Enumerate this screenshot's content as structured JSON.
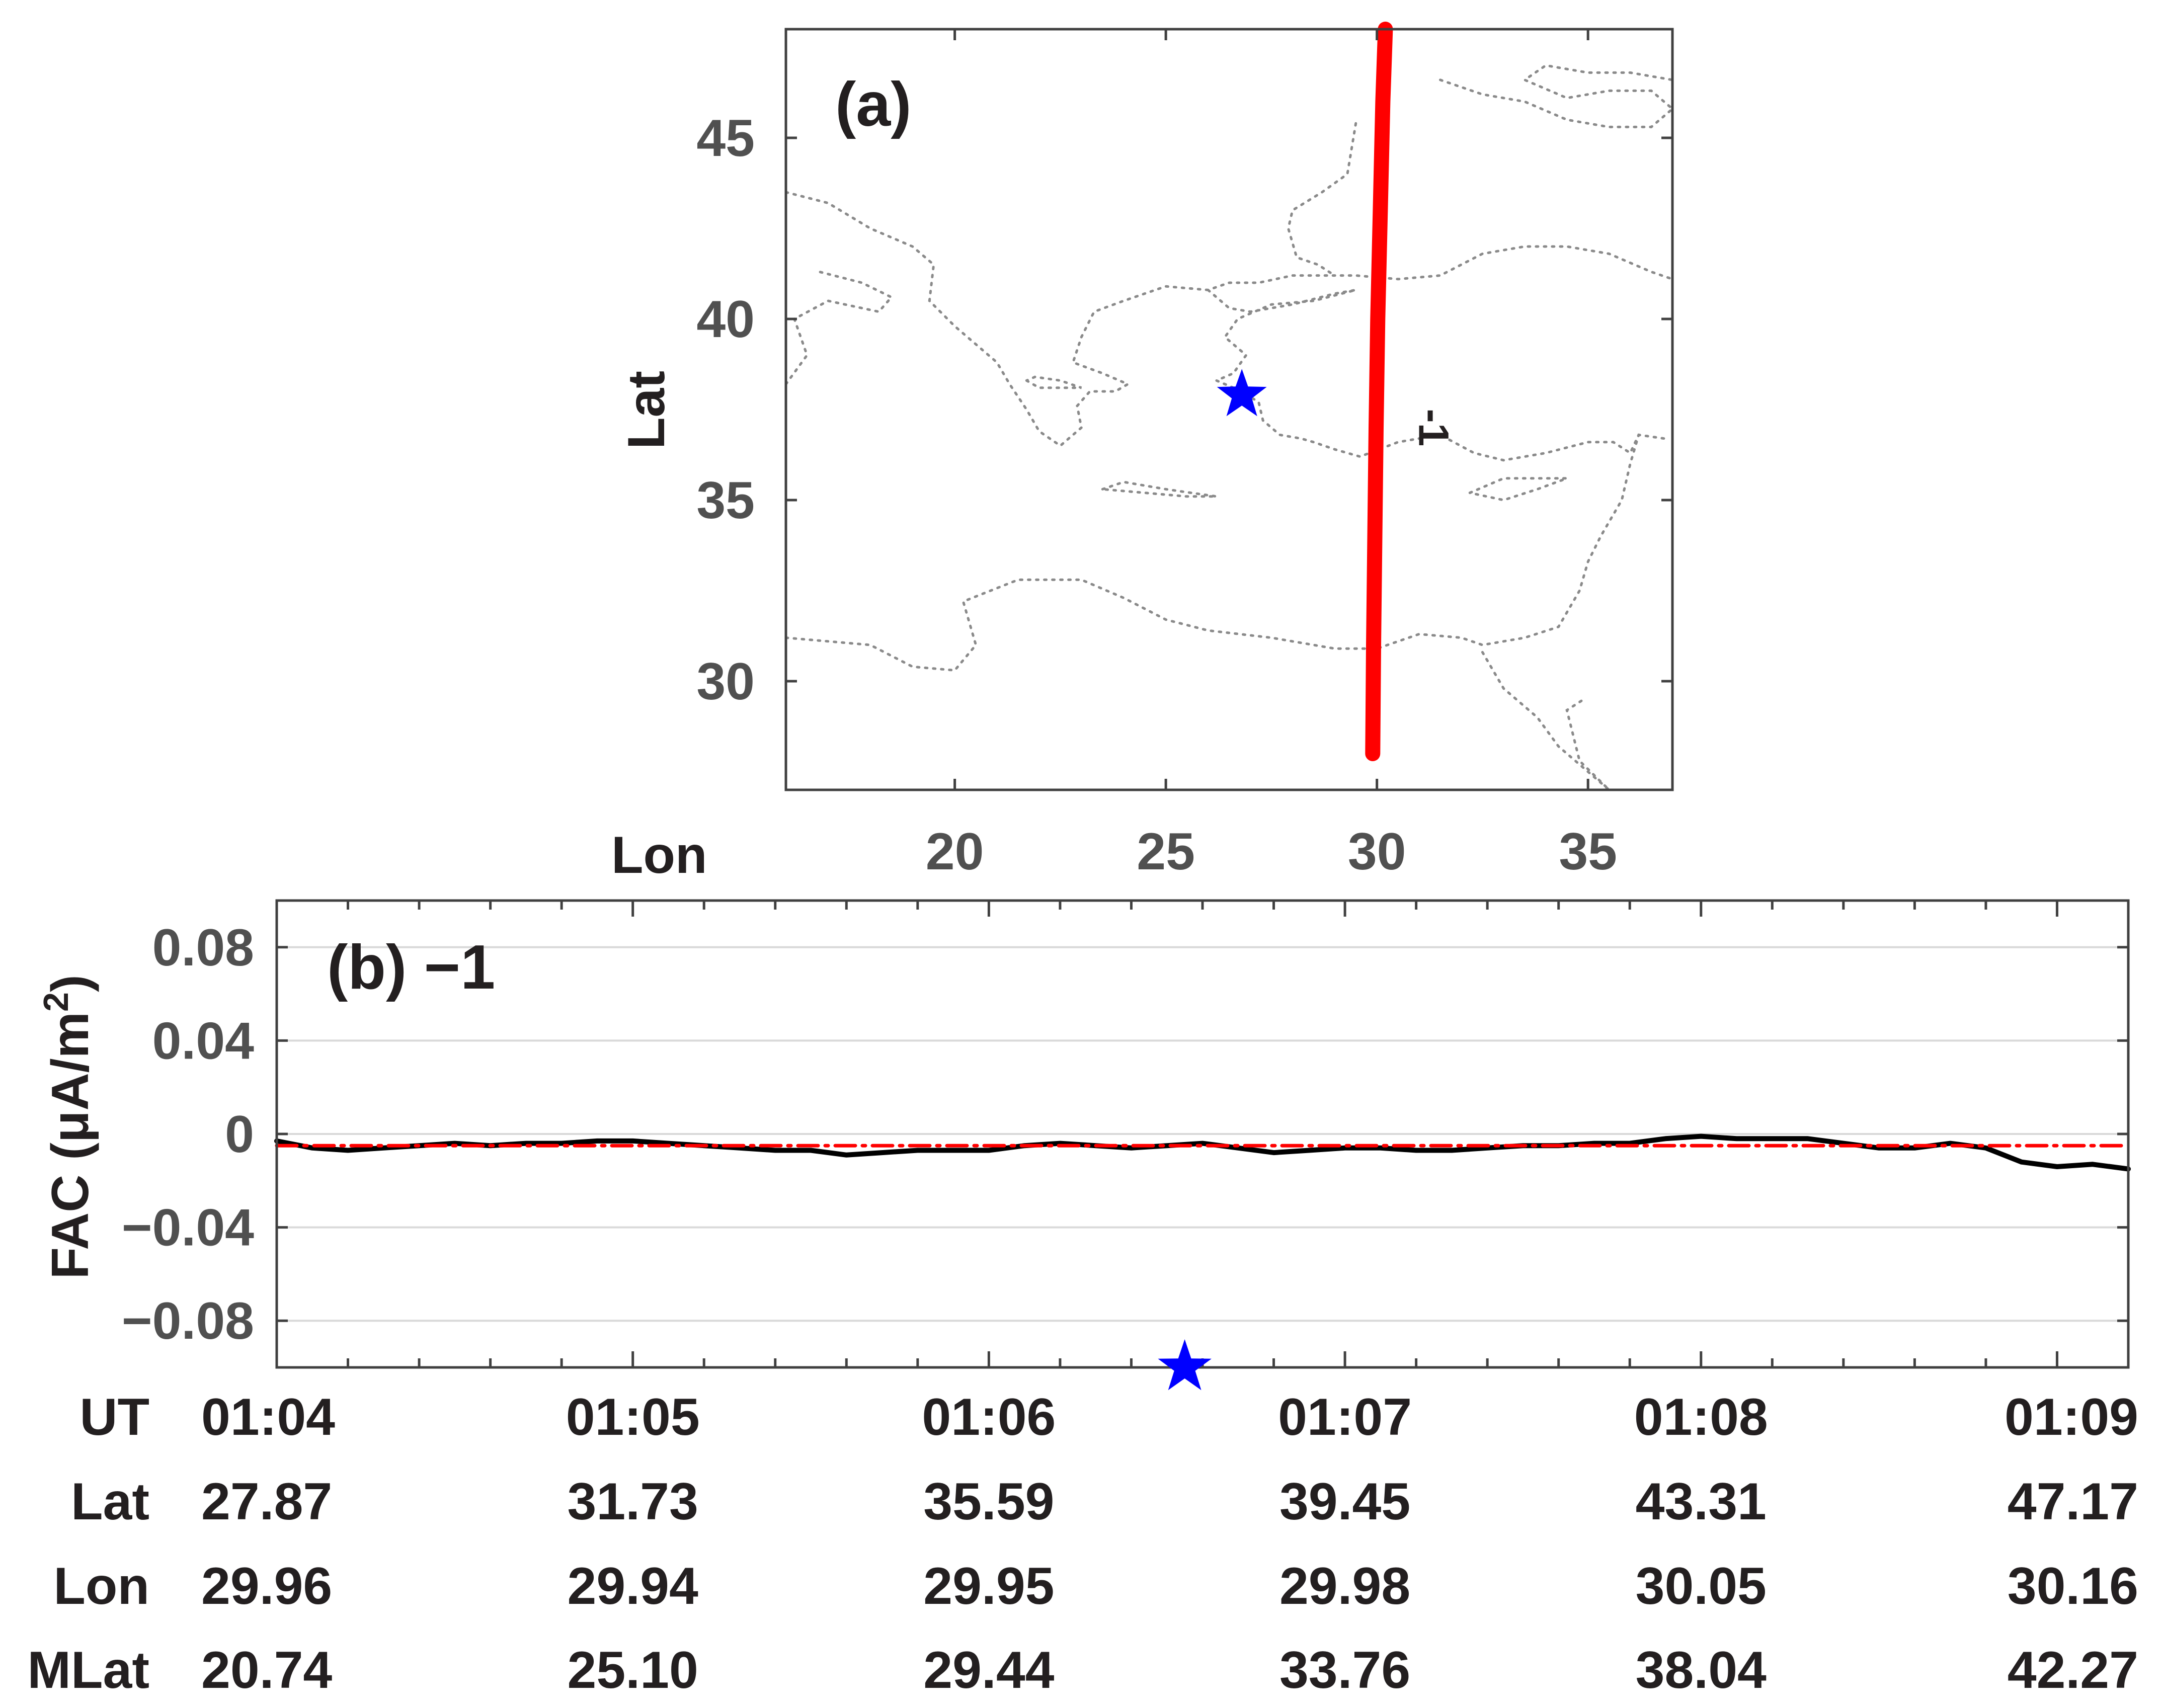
{
  "chart_data": [
    {
      "type": "line",
      "panel_label": "(a)",
      "xlabel": "Lon",
      "ylabel": "Lat",
      "xlim": [
        16,
        37
      ],
      "ylim": [
        27,
        48
      ],
      "xticks": [
        "20",
        "25",
        "30",
        "35"
      ],
      "yticks": [
        "30",
        "35",
        "40",
        "45"
      ],
      "grid": false,
      "track": {
        "color": "#ff0000",
        "label": "-1",
        "label_at": [
          31,
          37
        ],
        "lon": [
          29.9,
          29.92,
          29.95,
          29.98,
          30.02,
          30.08,
          30.14,
          30.2
        ],
        "lat": [
          28,
          31,
          34,
          37,
          40,
          43,
          46,
          48
        ]
      },
      "epicenter": {
        "lon": 26.8,
        "lat": 37.9,
        "color": "#0000ff"
      },
      "coastlines": {
        "style": "dotted",
        "color": "#8a8a8a",
        "polylines": [
          [
            [
              16,
              31.2
            ],
            [
              18,
              31
            ],
            [
              19,
              30.4
            ],
            [
              20,
              30.3
            ],
            [
              20.5,
              31
            ],
            [
              20.2,
              32.2
            ],
            [
              21.5,
              32.8
            ],
            [
              23,
              32.8
            ],
            [
              24,
              32.3
            ],
            [
              25,
              31.7
            ],
            [
              26,
              31.4
            ],
            [
              27.5,
              31.2
            ],
            [
              29,
              30.9
            ],
            [
              30,
              30.9
            ],
            [
              31,
              31.3
            ],
            [
              32,
              31.2
            ],
            [
              32.5,
              31
            ],
            [
              33.5,
              31.2
            ],
            [
              34.3,
              31.5
            ],
            [
              34.8,
              32.5
            ],
            [
              35,
              33.3
            ],
            [
              35.3,
              34
            ],
            [
              35.8,
              35
            ],
            [
              36,
              36
            ],
            [
              36.2,
              36.8
            ]
          ],
          [
            [
              16,
              43.5
            ],
            [
              17,
              43.2
            ],
            [
              18,
              42.5
            ],
            [
              19,
              42
            ],
            [
              19.5,
              41.5
            ],
            [
              19.4,
              40.5
            ],
            [
              20,
              39.8
            ],
            [
              20.5,
              39.3
            ],
            [
              21,
              38.8
            ],
            [
              21.3,
              38.2
            ],
            [
              21.7,
              37.5
            ],
            [
              22,
              36.9
            ],
            [
              22.5,
              36.5
            ],
            [
              23,
              37
            ],
            [
              22.9,
              37.6
            ],
            [
              23.2,
              38
            ],
            [
              23.8,
              38
            ],
            [
              24.1,
              38.2
            ],
            [
              23.5,
              38.5
            ],
            [
              22.8,
              38.8
            ],
            [
              23,
              39.5
            ],
            [
              23.3,
              40.2
            ],
            [
              24,
              40.5
            ],
            [
              25,
              40.9
            ],
            [
              26,
              40.8
            ],
            [
              26.5,
              41
            ],
            [
              27.2,
              41
            ],
            [
              28,
              41.2
            ],
            [
              29,
              41.2
            ],
            [
              29.5,
              41.2
            ],
            [
              30.5,
              41.1
            ],
            [
              31.5,
              41.2
            ],
            [
              32.5,
              41.8
            ],
            [
              33.5,
              42
            ],
            [
              34.5,
              42
            ],
            [
              35.5,
              41.8
            ],
            [
              36.5,
              41.3
            ],
            [
              37,
              41.1
            ]
          ],
          [
            [
              16,
              38.2
            ],
            [
              16.5,
              39
            ],
            [
              16.2,
              40
            ],
            [
              17,
              40.5
            ],
            [
              18.2,
              40.2
            ],
            [
              18.5,
              40.6
            ],
            [
              17.8,
              41
            ],
            [
              16.8,
              41.3
            ]
          ],
          [
            [
              26,
              40.8
            ],
            [
              26.5,
              40.3
            ],
            [
              27,
              40.2
            ],
            [
              28,
              40.4
            ],
            [
              29,
              40.7
            ],
            [
              29.5,
              40.8
            ],
            [
              28.5,
              40.5
            ],
            [
              27.5,
              40.4
            ],
            [
              26.7,
              40
            ],
            [
              26.4,
              39.5
            ],
            [
              26.9,
              39
            ],
            [
              26.6,
              38.5
            ],
            [
              26.2,
              38.3
            ],
            [
              26.8,
              38
            ],
            [
              27.2,
              37.7
            ],
            [
              27.3,
              37.2
            ],
            [
              27.7,
              36.8
            ],
            [
              28.2,
              36.7
            ],
            [
              28.5,
              36.6
            ],
            [
              29,
              36.4
            ],
            [
              29.6,
              36.2
            ],
            [
              30.5,
              36.6
            ],
            [
              31.5,
              36.8
            ],
            [
              32.3,
              36.3
            ],
            [
              33,
              36.1
            ],
            [
              34,
              36.3
            ],
            [
              35,
              36.6
            ],
            [
              35.6,
              36.6
            ],
            [
              36,
              36.3
            ],
            [
              36.2,
              36.8
            ],
            [
              36.8,
              36.7
            ]
          ],
          [
            [
              21.7,
              38.3
            ],
            [
              22,
              38.1
            ],
            [
              23,
              38.1
            ],
            [
              22.5,
              38.3
            ],
            [
              21.9,
              38.4
            ],
            [
              21.7,
              38.3
            ]
          ],
          [
            [
              23.5,
              35.3
            ],
            [
              24,
              35.5
            ],
            [
              25,
              35.3
            ],
            [
              26.2,
              35.1
            ],
            [
              25.5,
              35.1
            ],
            [
              24.5,
              35.2
            ],
            [
              23.5,
              35.3
            ]
          ],
          [
            [
              32.2,
              35.2
            ],
            [
              33,
              35.6
            ],
            [
              34,
              35.6
            ],
            [
              34.5,
              35.6
            ],
            [
              33.8,
              35.3
            ],
            [
              33,
              35
            ],
            [
              32.2,
              35.2
            ]
          ],
          [
            [
              31.5,
              46.6
            ],
            [
              32.5,
              46.2
            ],
            [
              33.5,
              46
            ],
            [
              34.5,
              45.5
            ],
            [
              35.5,
              45.3
            ],
            [
              36.5,
              45.3
            ],
            [
              37,
              45.8
            ],
            [
              36.5,
              46.3
            ],
            [
              35.5,
              46.3
            ],
            [
              34.5,
              46.1
            ],
            [
              33.5,
              46.6
            ],
            [
              34,
              47
            ],
            [
              35,
              46.8
            ],
            [
              36,
              46.8
            ],
            [
              37,
              46.6
            ]
          ],
          [
            [
              29.5,
              45.4
            ],
            [
              29.3,
              44
            ],
            [
              28.7,
              43.5
            ],
            [
              28,
              43
            ],
            [
              27.9,
              42.5
            ],
            [
              28.1,
              41.7
            ],
            [
              28.6,
              41.5
            ],
            [
              29,
              41.2
            ]
          ],
          [
            [
              32.5,
              30.8
            ],
            [
              33,
              29.8
            ],
            [
              33.8,
              29
            ],
            [
              34.3,
              28.2
            ],
            [
              35,
              27.5
            ],
            [
              35.5,
              27
            ],
            [
              34.8,
              27.8
            ],
            [
              34.5,
              29.2
            ],
            [
              34.9,
              29.5
            ]
          ]
        ]
      }
    },
    {
      "type": "line",
      "panel_label": "(b) −1",
      "ylabel": "FAC (μA/m",
      "ylabel_sup": "2",
      "ylabel_close": ")",
      "ylim": [
        -0.1,
        0.1
      ],
      "yticks": [
        0.08,
        0.04,
        0,
        -0.04,
        -0.08
      ],
      "ytick_labels": [
        "0.08",
        "0.04",
        "0",
        "−0.04",
        "−0.08"
      ],
      "xlim_minutes": [
        64,
        69.2
      ],
      "grid": "horizontal",
      "series": [
        {
          "color": "#000000",
          "style": "solid",
          "x": [
            64,
            64.1,
            64.2,
            64.3,
            64.4,
            64.5,
            64.6,
            64.7,
            64.8,
            64.9,
            65,
            65.1,
            65.2,
            65.3,
            65.4,
            65.5,
            65.6,
            65.7,
            65.8,
            65.9,
            66,
            66.1,
            66.2,
            66.3,
            66.4,
            66.5,
            66.6,
            66.7,
            66.8,
            66.9,
            67,
            67.1,
            67.2,
            67.3,
            67.4,
            67.5,
            67.6,
            67.7,
            67.8,
            67.9,
            68,
            68.1,
            68.2,
            68.3,
            68.4,
            68.5,
            68.6,
            68.7,
            68.8,
            68.9,
            69,
            69.1,
            69.2
          ],
          "y": [
            -0.003,
            -0.006,
            -0.007,
            -0.006,
            -0.005,
            -0.004,
            -0.005,
            -0.004,
            -0.004,
            -0.003,
            -0.003,
            -0.004,
            -0.005,
            -0.006,
            -0.007,
            -0.007,
            -0.009,
            -0.008,
            -0.007,
            -0.007,
            -0.007,
            -0.005,
            -0.004,
            -0.005,
            -0.006,
            -0.005,
            -0.004,
            -0.006,
            -0.008,
            -0.007,
            -0.006,
            -0.006,
            -0.007,
            -0.007,
            -0.006,
            -0.005,
            -0.005,
            -0.004,
            -0.004,
            -0.002,
            -0.001,
            -0.002,
            -0.002,
            -0.002,
            -0.004,
            -0.006,
            -0.006,
            -0.004,
            -0.006,
            -0.012,
            -0.014,
            -0.013,
            -0.015
          ]
        },
        {
          "color": "#ff0000",
          "style": "dash-dot",
          "x": [
            64,
            69.2
          ],
          "y": [
            -0.005,
            -0.005
          ]
        }
      ],
      "event_marker": {
        "x": 66.55,
        "color": "#0000ff"
      },
      "table": {
        "rows": [
          {
            "label": "UT",
            "values": [
              "01:04",
              "01:05",
              "01:06",
              "01:07",
              "01:08",
              "01:09"
            ]
          },
          {
            "label": "Lat",
            "values": [
              "27.87",
              "31.73",
              "35.59",
              "39.45",
              "43.31",
              "47.17"
            ]
          },
          {
            "label": "Lon",
            "values": [
              "29.96",
              "29.94",
              "29.95",
              "29.98",
              "30.05",
              "30.16"
            ]
          },
          {
            "label": "MLat",
            "values": [
              "20.74",
              "25.10",
              "29.44",
              "33.76",
              "38.04",
              "42.27"
            ]
          }
        ],
        "column_minutes": [
          64,
          65,
          66,
          67,
          68,
          69
        ]
      }
    }
  ]
}
